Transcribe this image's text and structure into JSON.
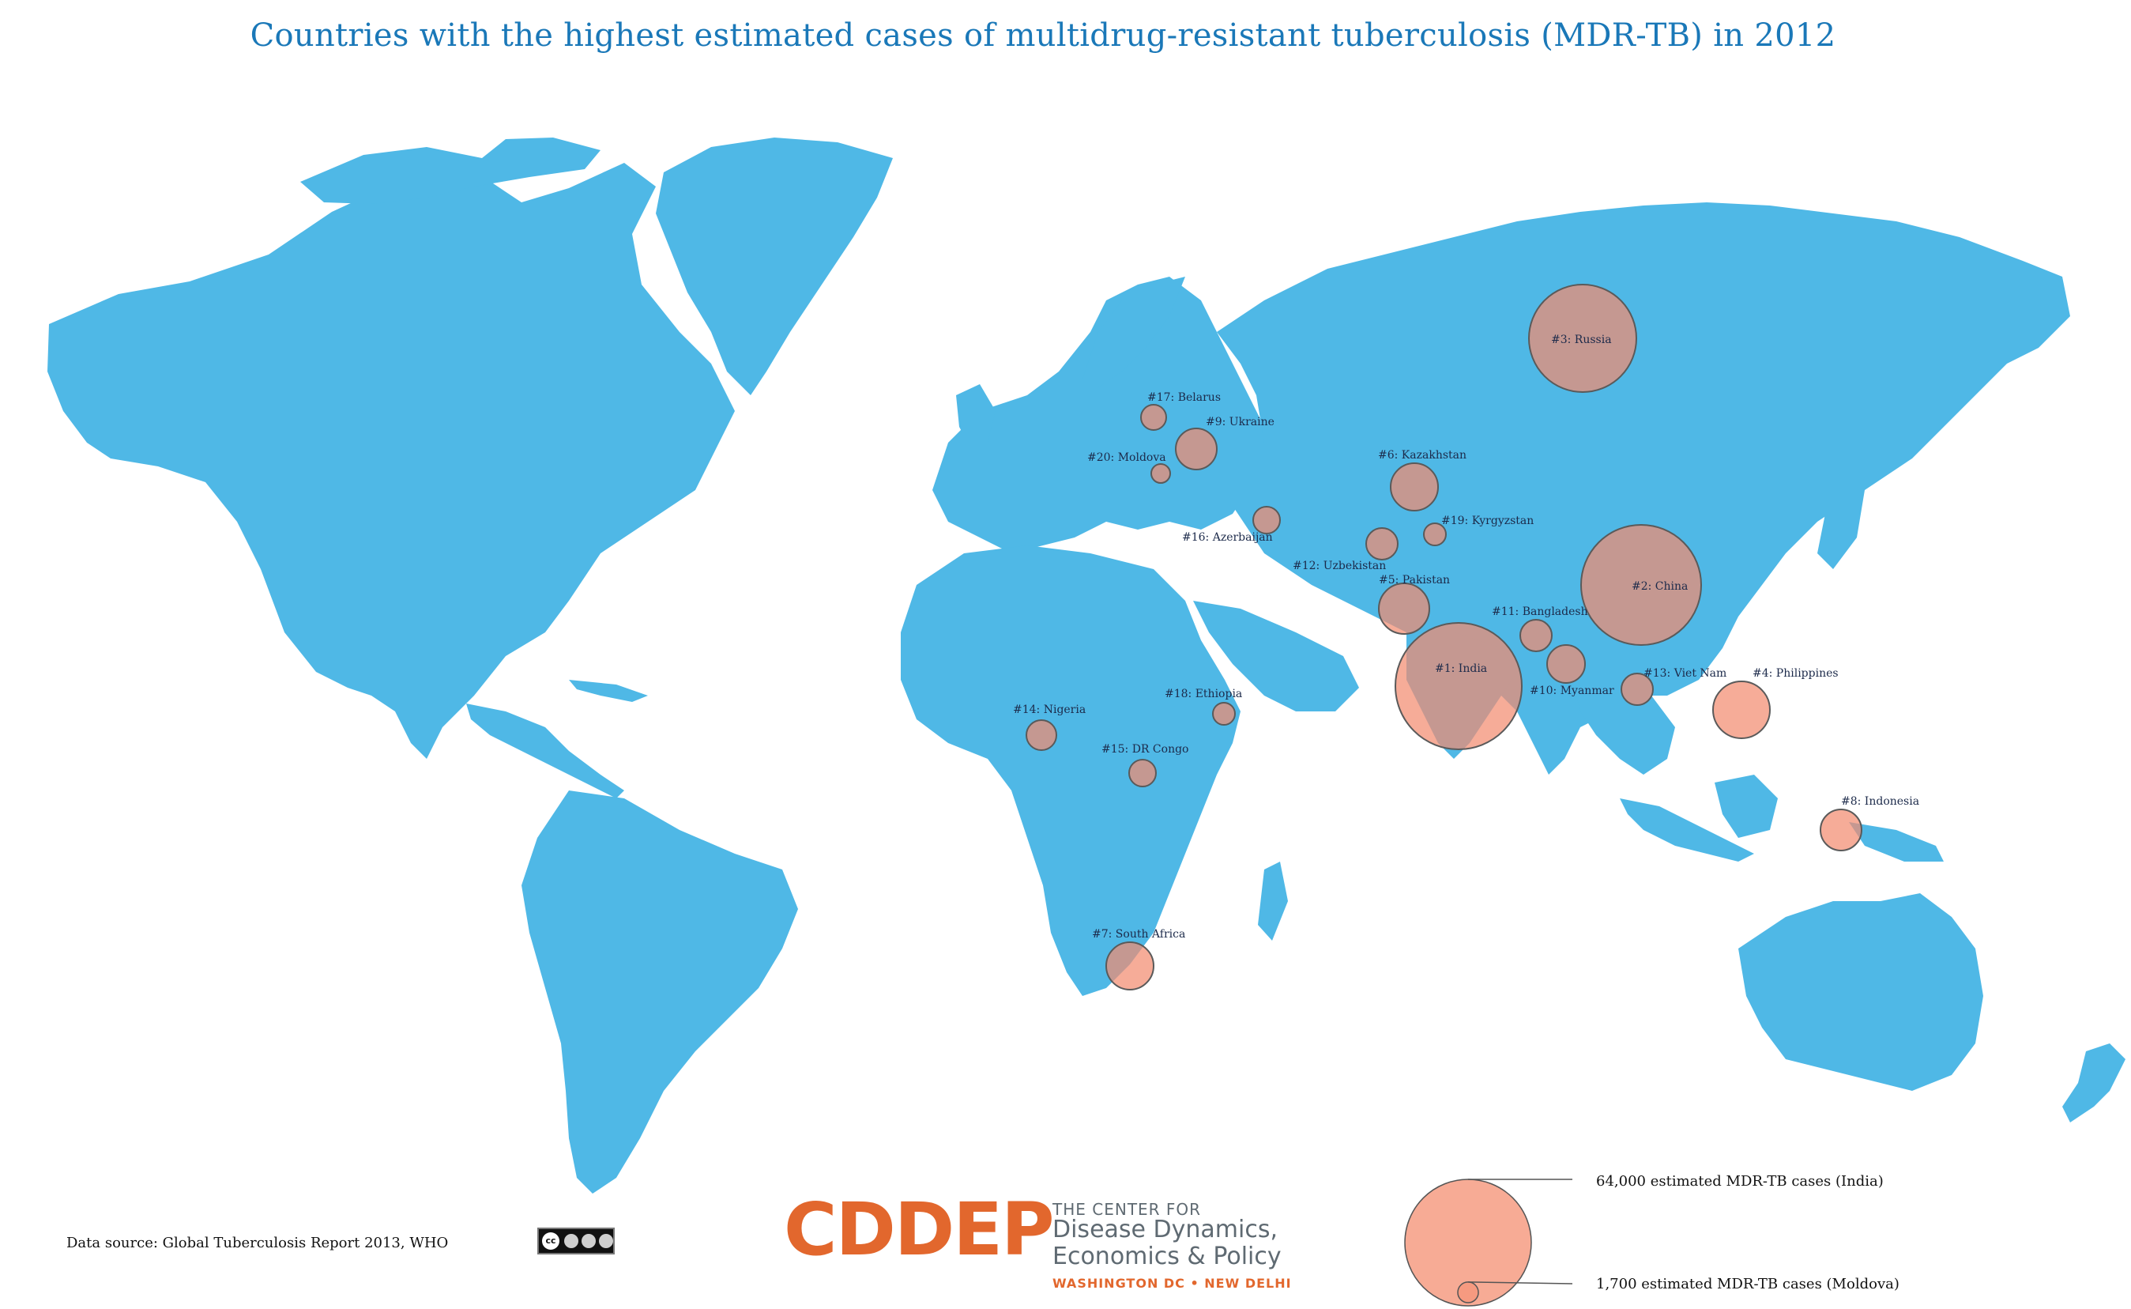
{
  "title": "Countries with the highest estimated cases of multidrug-resistant tuberculosis (MDR-TB) in 2012",
  "colors": {
    "land": "#4fb8e6",
    "bubble": "#f28c70",
    "title": "#1a78b8",
    "brand": "#e2672d"
  },
  "bubbles": [
    {
      "label": "#1: India",
      "country": "India"
    },
    {
      "label": "#2: China",
      "country": "China"
    },
    {
      "label": "#3: Russia",
      "country": "Russia"
    },
    {
      "label": "#4: Philippines",
      "country": "Philippines"
    },
    {
      "label": "#5: Pakistan",
      "country": "Pakistan"
    },
    {
      "label": "#6: Kazakhstan",
      "country": "Kazakhstan"
    },
    {
      "label": "#7: South Africa",
      "country": "South Africa"
    },
    {
      "label": "#8: Indonesia",
      "country": "Indonesia"
    },
    {
      "label": "#9: Ukraine",
      "country": "Ukraine"
    },
    {
      "label": "#10: Myanmar",
      "country": "Myanmar"
    },
    {
      "label": "#11: Bangladesh",
      "country": "Bangladesh"
    },
    {
      "label": "#12: Uzbekistan",
      "country": "Uzbekistan"
    },
    {
      "label": "#13: Viet Nam",
      "country": "Viet Nam"
    },
    {
      "label": "#14: Nigeria",
      "country": "Nigeria"
    },
    {
      "label": "#15: DR Congo",
      "country": "DR Congo"
    },
    {
      "label": "#16: Azerbaijan",
      "country": "Azerbaijan"
    },
    {
      "label": "#17: Belarus",
      "country": "Belarus"
    },
    {
      "label": "#18: Ethiopia",
      "country": "Ethiopia"
    },
    {
      "label": "#19: Kyrgyzstan",
      "country": "Kyrgyzstan"
    },
    {
      "label": "#20: Moldova",
      "country": "Moldova"
    }
  ],
  "legend": {
    "max_label": "64,000 estimated MDR-TB cases (India)",
    "min_label": "1,700 estimated MDR-TB cases (Moldova)",
    "max_value": 64000,
    "min_value": 1700
  },
  "source": "Data source: Global Tuberculosis Report 2013, WHO",
  "license_badge": {
    "icon": "creative-commons-by-nc-sa-icon",
    "parts": [
      "cc",
      "BY",
      "NC",
      "SA"
    ]
  },
  "logo": {
    "main": "CDDEP",
    "small": "THE CENTER FOR",
    "line1": "Disease Dynamics,",
    "line2": "Economics & Policy",
    "city": "WASHINGTON DC • NEW DELHI"
  }
}
